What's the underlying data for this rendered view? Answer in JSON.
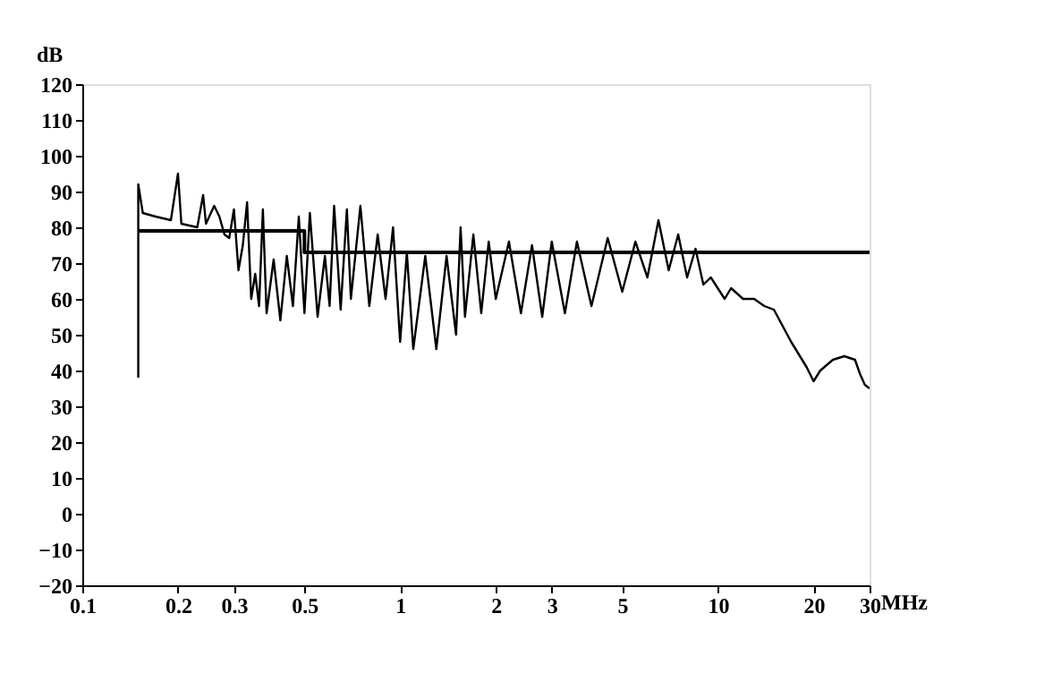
{
  "chart_data": {
    "type": "line",
    "xlabel": "MHz",
    "ylabel": "dB",
    "log": "x",
    "xlim": [
      0.1,
      30
    ],
    "ylim": [
      -20,
      120
    ],
    "xticks": [
      0.1,
      0.2,
      0.3,
      0.5,
      1,
      2,
      3,
      5,
      10,
      20,
      30
    ],
    "yticks": [
      -20,
      -10,
      0,
      10,
      20,
      30,
      40,
      50,
      60,
      70,
      80,
      90,
      100,
      110,
      120
    ],
    "grid": false,
    "series": [
      {
        "color": "#000000",
        "x": [
          0.15,
          0.15,
          0.155,
          0.17,
          0.19,
          0.2,
          0.205,
          0.23,
          0.24,
          0.245,
          0.26,
          0.27,
          0.28,
          0.29,
          0.3,
          0.31,
          0.32,
          0.33,
          0.34,
          0.35,
          0.36,
          0.37,
          0.38,
          0.4,
          0.42,
          0.44,
          0.46,
          0.48,
          0.5,
          0.52,
          0.55,
          0.58,
          0.6,
          0.62,
          0.65,
          0.68,
          0.7,
          0.75,
          0.8,
          0.85,
          0.9,
          0.95,
          1.0,
          1.05,
          1.1,
          1.2,
          1.3,
          1.4,
          1.5,
          1.55,
          1.6,
          1.7,
          1.8,
          1.9,
          2.0,
          2.2,
          2.4,
          2.6,
          2.8,
          3.0,
          3.3,
          3.6,
          4.0,
          4.5,
          5.0,
          5.5,
          6.0,
          6.5,
          7.0,
          7.5,
          8.0,
          8.5,
          9.0,
          9.5,
          10.5,
          11,
          12,
          13,
          14,
          15,
          17,
          19,
          20,
          21,
          23,
          25,
          27,
          28,
          29,
          30
        ],
        "values": [
          38,
          92,
          84,
          83,
          82,
          95,
          81,
          80,
          89,
          81,
          86,
          83,
          78,
          77,
          85,
          68,
          75,
          87,
          60,
          67,
          58,
          85,
          56,
          71,
          54,
          72,
          58,
          83,
          56,
          84,
          55,
          72,
          58,
          86,
          57,
          85,
          60,
          86,
          58,
          78,
          60,
          80,
          48,
          73,
          46,
          72,
          46,
          72,
          50,
          80,
          55,
          78,
          56,
          76,
          60,
          76,
          56,
          75,
          55,
          76,
          56,
          76,
          58,
          77,
          62,
          76,
          66,
          82,
          68,
          78,
          66,
          74,
          64,
          66,
          60,
          63,
          60,
          60,
          58,
          57,
          48,
          41,
          37,
          40,
          43,
          44,
          43,
          39,
          36,
          35
        ]
      },
      {
        "color": "#000000",
        "x": [
          0.15,
          0.5,
          0.5,
          30
        ],
        "values": [
          79,
          79,
          73,
          73
        ]
      }
    ]
  }
}
